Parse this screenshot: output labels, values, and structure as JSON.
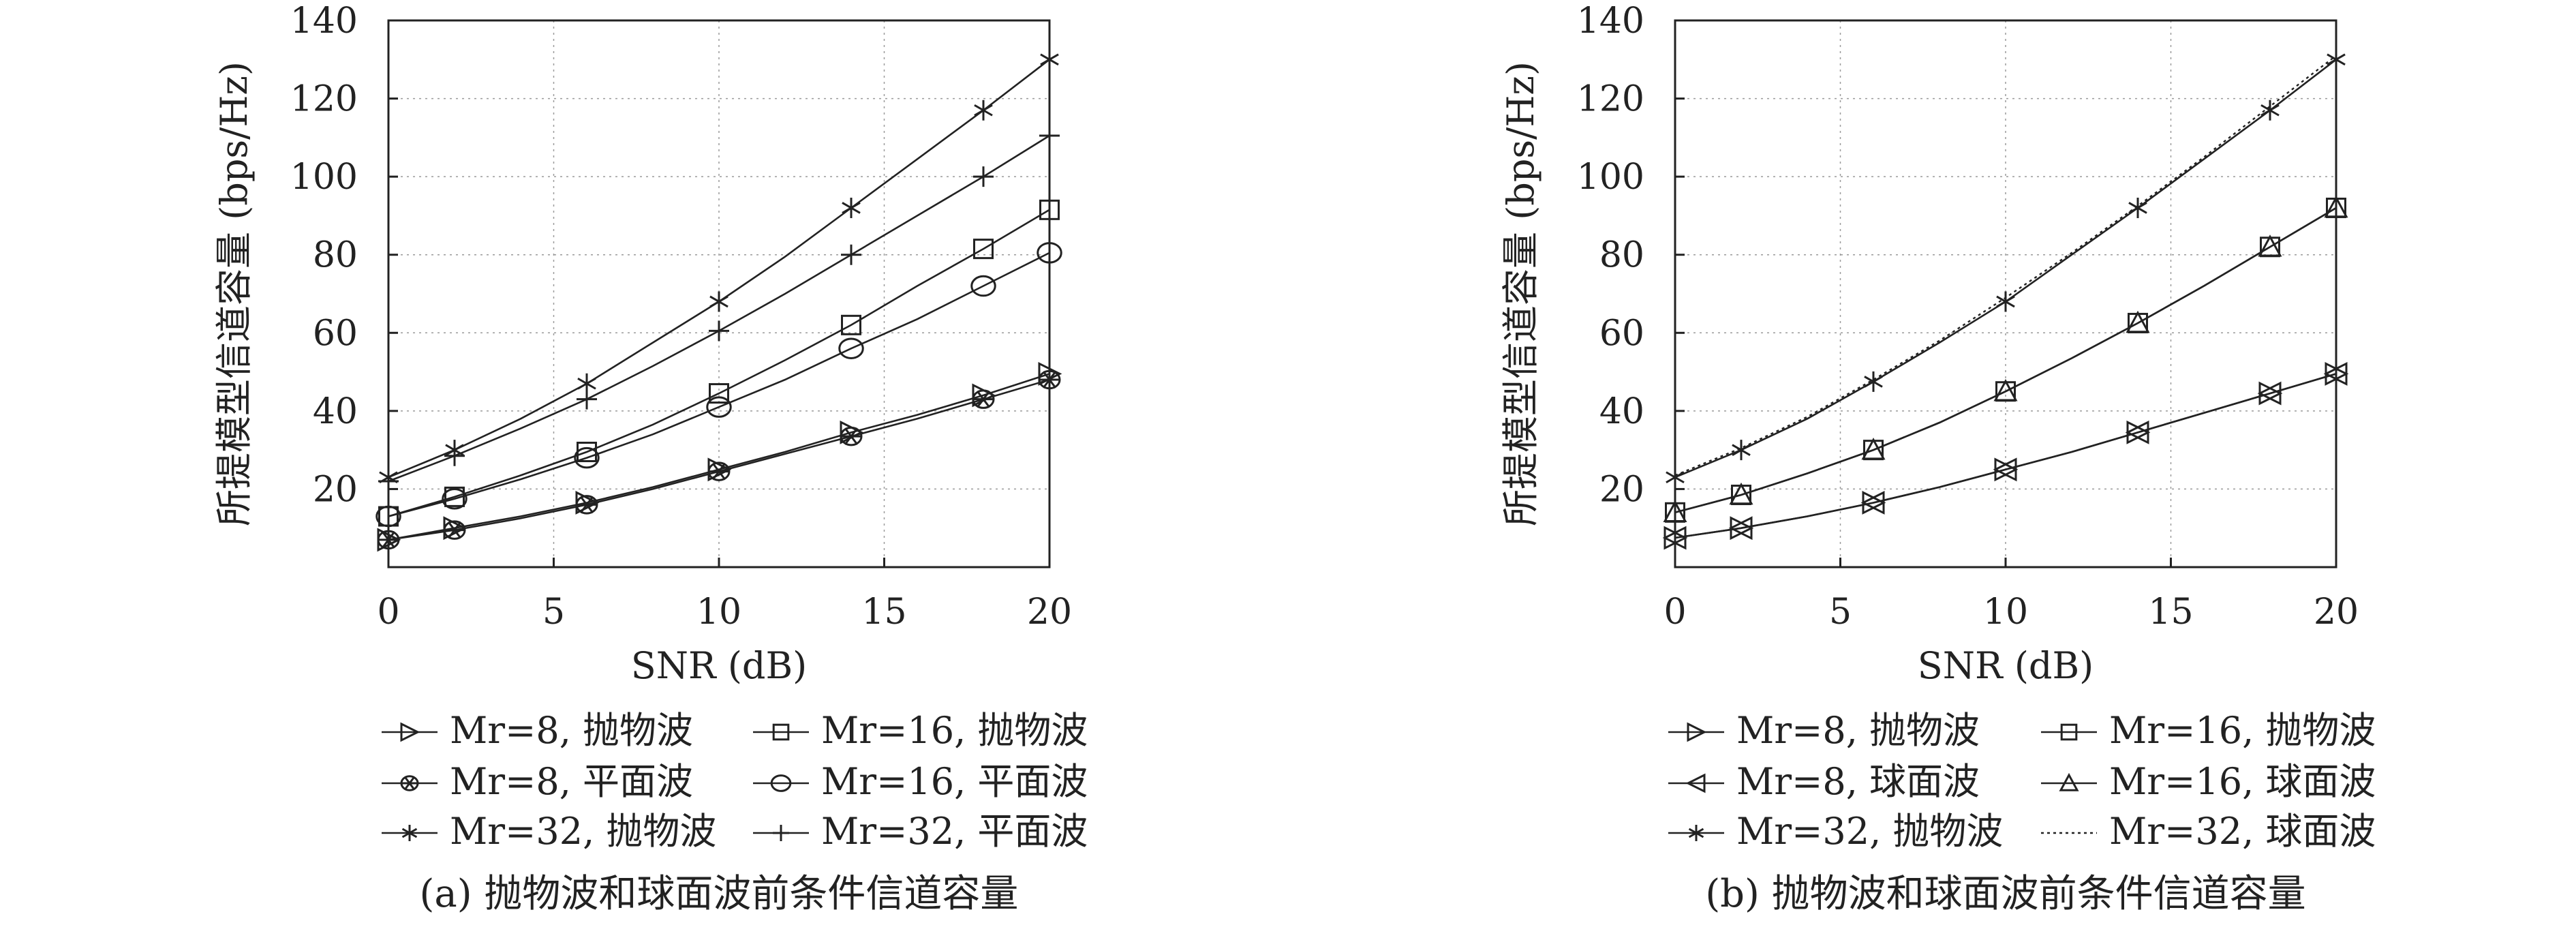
{
  "chart_data": [
    {
      "type": "line",
      "caption": "(a) 抛物波和球面波前条件信道容量",
      "xlabel": "SNR (dB)",
      "ylabel": "所提模型信道容量 (bps/Hz)",
      "xlim": [
        0,
        20
      ],
      "ylim": [
        0,
        140
      ],
      "x_ticks": [
        "0",
        "5",
        "10",
        "15",
        "20"
      ],
      "y_ticks": [
        "20",
        "40",
        "60",
        "80",
        "100",
        "120",
        "140"
      ],
      "grid": true,
      "legend_position": "bottom",
      "x": [
        0,
        2,
        4,
        6,
        8,
        10,
        12,
        14,
        16,
        18,
        20
      ],
      "series": [
        {
          "name": "Mr=8, 抛物波",
          "marker": "triangle-right",
          "values": [
            7,
            10,
            13,
            16.5,
            20.5,
            25,
            29.5,
            34.5,
            39,
            44,
            49.5
          ]
        },
        {
          "name": "Mr=16, 抛物波",
          "marker": "square",
          "values": [
            13,
            18,
            23.5,
            29.5,
            36.5,
            44.5,
            53,
            62,
            72,
            81.5,
            91.5
          ]
        },
        {
          "name": "Mr=8, 平面波",
          "marker": "star-circle",
          "values": [
            7,
            9.5,
            12.5,
            16,
            20,
            24.5,
            29,
            33.5,
            38,
            43,
            48
          ]
        },
        {
          "name": "Mr=16, 平面波",
          "marker": "circle",
          "values": [
            13,
            17.5,
            22.5,
            28,
            34,
            41,
            48,
            56,
            63.5,
            72,
            80.5
          ]
        },
        {
          "name": "Mr=32, 抛物波",
          "marker": "asterisk",
          "values": [
            23,
            30,
            38,
            47,
            57.5,
            68,
            79.5,
            92,
            104.5,
            117,
            130
          ]
        },
        {
          "name": "Mr=32, 平面波",
          "marker": "plus",
          "values": [
            22,
            28.5,
            35.5,
            43,
            51.5,
            60.5,
            70,
            80,
            90,
            100,
            110.5
          ]
        }
      ]
    },
    {
      "type": "line",
      "caption": "(b) 抛物波和球面波前条件信道容量",
      "xlabel": "SNR (dB)",
      "ylabel": "所提模型信道容量 (bps/Hz)",
      "xlim": [
        0,
        20
      ],
      "ylim": [
        0,
        140
      ],
      "x_ticks": [
        "0",
        "5",
        "10",
        "15",
        "20"
      ],
      "y_ticks": [
        "20",
        "40",
        "60",
        "80",
        "100",
        "120",
        "140"
      ],
      "grid": true,
      "legend_position": "bottom",
      "x": [
        0,
        2,
        4,
        6,
        8,
        10,
        12,
        14,
        16,
        18,
        20
      ],
      "series": [
        {
          "name": "Mr=8, 抛物波",
          "marker": "triangle-right",
          "values": [
            7.5,
            10,
            13,
            16.5,
            20.5,
            25,
            29.5,
            34.5,
            39.5,
            44.5,
            49.5
          ]
        },
        {
          "name": "Mr=16, 抛物波",
          "marker": "square",
          "values": [
            14,
            18.5,
            24,
            30,
            37,
            45,
            53.5,
            62.5,
            72,
            82,
            92
          ]
        },
        {
          "name": "Mr=8, 球面波",
          "marker": "triangle-left",
          "values": [
            7.5,
            10,
            13,
            16.5,
            20.5,
            25,
            29.5,
            34.5,
            39.5,
            44.5,
            49.5
          ]
        },
        {
          "name": "Mr=16, 球面波",
          "marker": "triangle-up",
          "values": [
            14,
            18.5,
            24,
            30,
            37,
            45,
            53.5,
            62.5,
            72,
            82,
            92
          ]
        },
        {
          "name": "Mr=32, 抛物波",
          "marker": "asterisk",
          "values": [
            23,
            30,
            38,
            47.5,
            57.5,
            68,
            80,
            92,
            104.5,
            117,
            130
          ]
        },
        {
          "name": "Mr=32, 球面波",
          "marker": "dotted",
          "values": [
            23.5,
            30.5,
            38.5,
            48,
            58,
            69,
            80.5,
            92.5,
            105,
            118,
            131
          ]
        }
      ]
    }
  ]
}
